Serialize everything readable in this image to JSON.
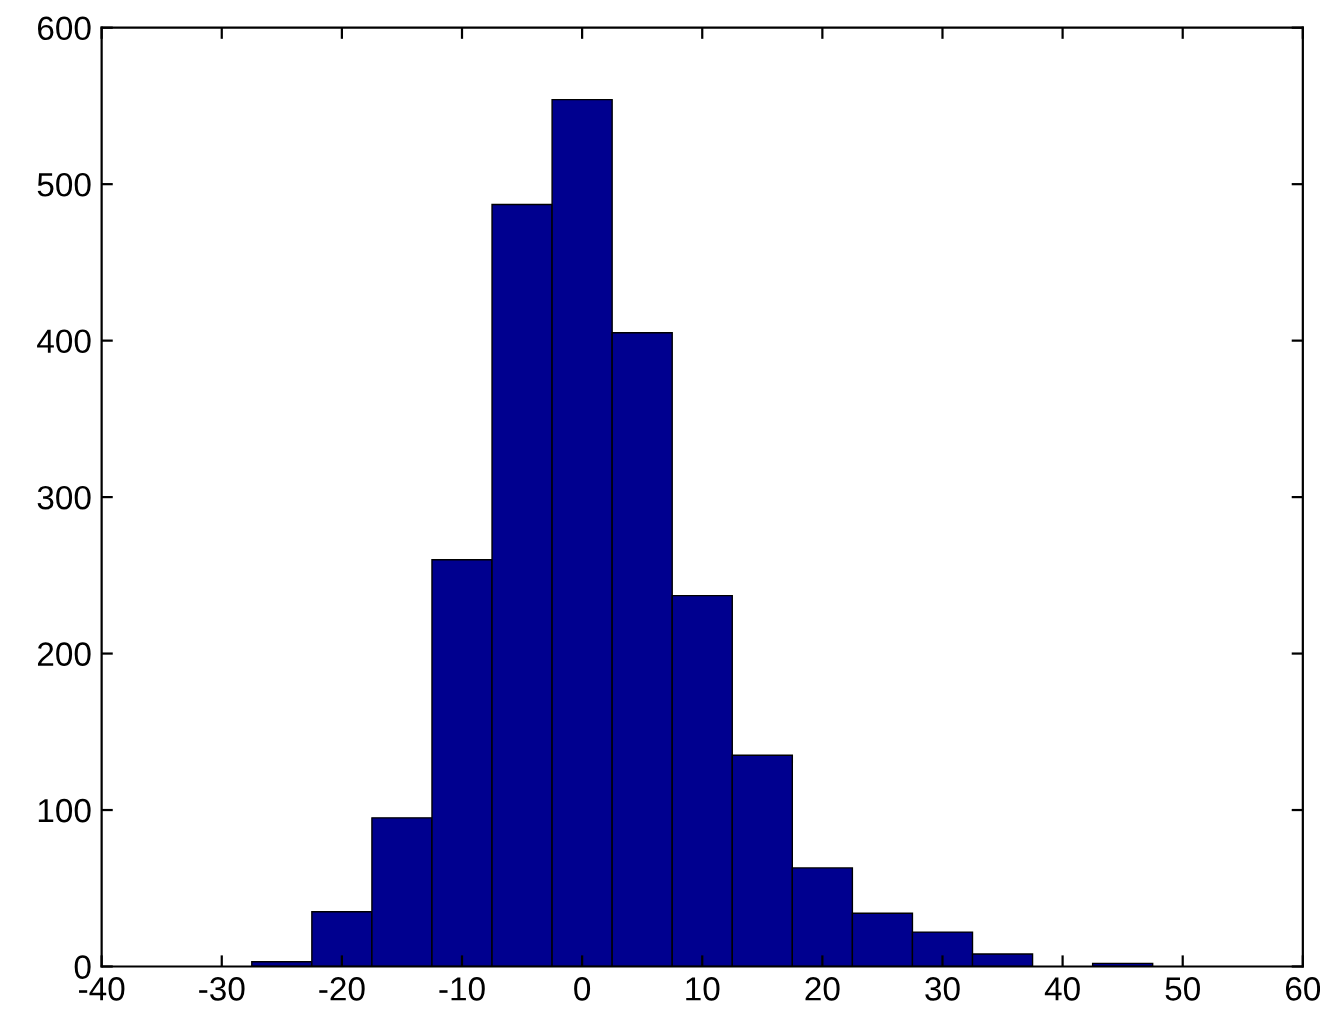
{
  "chart_data": {
    "type": "histogram",
    "bins": [
      -27.5,
      -22.5,
      -17.5,
      -12.5,
      -7.5,
      -2.5,
      2.5,
      7.5,
      12.5,
      17.5,
      22.5,
      27.5,
      32.5,
      37.5,
      42.5,
      47.5
    ],
    "values": [
      3,
      35,
      95,
      260,
      487,
      554,
      405,
      237,
      135,
      63,
      34,
      22,
      8,
      0,
      2
    ],
    "color": "#00008f",
    "xlim": [
      -40,
      60
    ],
    "xticks": [
      -40,
      -30,
      -20,
      -10,
      0,
      10,
      20,
      30,
      40,
      50,
      60
    ],
    "ylim": [
      0,
      600
    ],
    "yticks": [
      0,
      100,
      200,
      300,
      400,
      500,
      600
    ],
    "grid": false
  }
}
